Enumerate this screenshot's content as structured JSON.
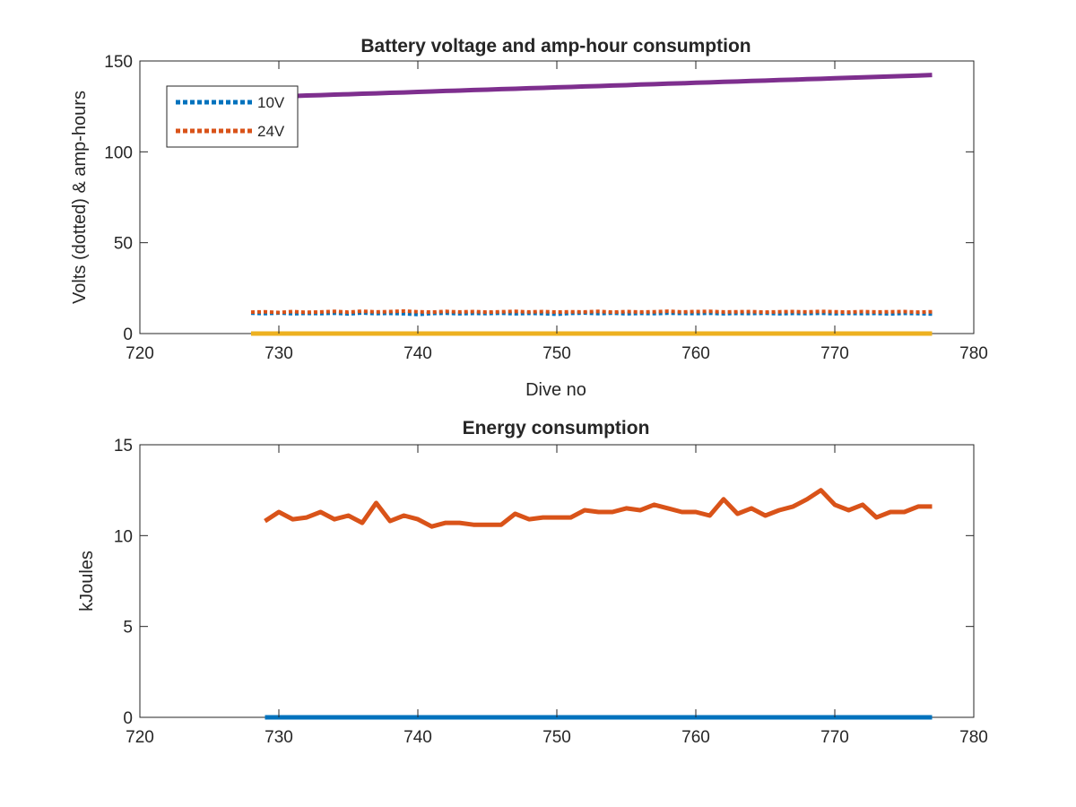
{
  "chart_data": [
    {
      "type": "line",
      "title": "Battery voltage and amp-hour consumption",
      "xlabel": "Dive no",
      "ylabel": "Volts (dotted) & amp-hours",
      "xlim": [
        720,
        780
      ],
      "ylim": [
        0,
        150
      ],
      "xticks": [
        "720",
        "730",
        "740",
        "750",
        "760",
        "770",
        "780"
      ],
      "yticks": [
        "0",
        "50",
        "100",
        "150"
      ],
      "grid": false,
      "legend_position": "top-left",
      "x": [
        728,
        729,
        730,
        731,
        732,
        733,
        734,
        735,
        736,
        737,
        738,
        739,
        740,
        741,
        742,
        743,
        744,
        745,
        746,
        747,
        748,
        749,
        750,
        751,
        752,
        753,
        754,
        755,
        756,
        757,
        758,
        759,
        760,
        761,
        762,
        763,
        764,
        765,
        766,
        767,
        768,
        769,
        770,
        771,
        772,
        773,
        774,
        775,
        776,
        777
      ],
      "series": [
        {
          "name": "10V",
          "style": "dotted",
          "color": "#0072BD",
          "values": [
            11.2,
            11.0,
            11.3,
            10.9,
            11.1,
            11.0,
            11.2,
            10.8,
            11.3,
            11.0,
            11.1,
            10.9,
            10.5,
            11.0,
            11.2,
            10.9,
            11.1,
            11.0,
            11.2,
            10.9,
            11.1,
            11.0,
            10.6,
            11.1,
            11.3,
            11.0,
            11.2,
            10.9,
            11.1,
            11.0,
            11.2,
            11.1,
            11.0,
            11.2,
            10.9,
            11.1,
            11.0,
            11.2,
            10.9,
            11.1,
            11.0,
            11.2,
            10.9,
            11.1,
            11.0,
            11.1,
            10.8,
            11.1,
            11.0,
            10.7
          ]
        },
        {
          "name": "24V",
          "style": "dotted",
          "color": "#D95319",
          "values": [
            11.8,
            12.0,
            11.6,
            12.1,
            11.7,
            11.9,
            12.2,
            11.8,
            12.3,
            11.9,
            12.1,
            12.4,
            12.0,
            11.8,
            12.2,
            11.9,
            12.1,
            11.8,
            12.0,
            12.2,
            11.9,
            12.1,
            11.8,
            12.0,
            11.9,
            12.2,
            11.8,
            12.1,
            11.9,
            12.0,
            12.3,
            11.9,
            12.1,
            12.2,
            11.9,
            12.0,
            12.1,
            11.8,
            12.0,
            12.1,
            11.9,
            12.2,
            12.0,
            11.8,
            12.1,
            11.9,
            12.0,
            12.1,
            11.8,
            12.0
          ]
        },
        {
          "style": "solid",
          "color": "#EDB120",
          "values": [
            0,
            0,
            0,
            0,
            0,
            0,
            0,
            0,
            0,
            0,
            0,
            0,
            0,
            0,
            0,
            0,
            0,
            0,
            0,
            0,
            0,
            0,
            0,
            0,
            0,
            0,
            0,
            0,
            0,
            0,
            0,
            0,
            0,
            0,
            0,
            0,
            0,
            0,
            0,
            0,
            0,
            0,
            0,
            0,
            0,
            0,
            0,
            0,
            0,
            0
          ]
        },
        {
          "style": "solid",
          "color": "#7E2F8E",
          "values": [
            130,
            130.2,
            130.5,
            130.7,
            131,
            131.2,
            131.5,
            131.7,
            132,
            132.2,
            132.5,
            132.7,
            133,
            133.2,
            133.5,
            133.7,
            134,
            134.2,
            134.5,
            134.7,
            135,
            135.2,
            135.5,
            135.7,
            136,
            136.2,
            136.5,
            136.7,
            137,
            137.2,
            137.5,
            137.7,
            138,
            138.2,
            138.5,
            138.7,
            139,
            139.2,
            139.5,
            139.7,
            140,
            140.2,
            140.5,
            140.7,
            141,
            141.2,
            141.5,
            141.7,
            142,
            142.3
          ]
        }
      ]
    },
    {
      "type": "line",
      "title": "Energy consumption",
      "xlabel": "",
      "ylabel": "kJoules",
      "xlim": [
        720,
        780
      ],
      "ylim": [
        0,
        15
      ],
      "xticks": [
        "720",
        "730",
        "740",
        "750",
        "760",
        "770",
        "780"
      ],
      "yticks": [
        "0",
        "5",
        "10",
        "15"
      ],
      "grid": false,
      "x": [
        729,
        730,
        731,
        732,
        733,
        734,
        735,
        736,
        737,
        738,
        739,
        740,
        741,
        742,
        743,
        744,
        745,
        746,
        747,
        748,
        749,
        750,
        751,
        752,
        753,
        754,
        755,
        756,
        757,
        758,
        759,
        760,
        761,
        762,
        763,
        764,
        765,
        766,
        767,
        768,
        769,
        770,
        771,
        772,
        773,
        774,
        775,
        776,
        777
      ],
      "series": [
        {
          "style": "solid",
          "color": "#0072BD",
          "values": [
            0,
            0,
            0,
            0,
            0,
            0,
            0,
            0,
            0,
            0,
            0,
            0,
            0,
            0,
            0,
            0,
            0,
            0,
            0,
            0,
            0,
            0,
            0,
            0,
            0,
            0,
            0,
            0,
            0,
            0,
            0,
            0,
            0,
            0,
            0,
            0,
            0,
            0,
            0,
            0,
            0,
            0,
            0,
            0,
            0,
            0,
            0,
            0,
            0
          ]
        },
        {
          "style": "solid",
          "color": "#D95319",
          "values": [
            10.8,
            11.3,
            10.9,
            11.0,
            11.3,
            10.9,
            11.1,
            10.7,
            11.8,
            10.8,
            11.1,
            10.9,
            10.5,
            10.7,
            10.7,
            10.6,
            10.6,
            10.6,
            11.2,
            10.9,
            11.0,
            11.0,
            11.0,
            11.4,
            11.3,
            11.3,
            11.5,
            11.4,
            11.7,
            11.5,
            11.3,
            11.3,
            11.1,
            12.0,
            11.2,
            11.5,
            11.1,
            11.4,
            11.6,
            12.0,
            12.5,
            11.7,
            11.4,
            11.7,
            11.0,
            11.3,
            11.3,
            11.6,
            11.6
          ]
        }
      ]
    }
  ]
}
